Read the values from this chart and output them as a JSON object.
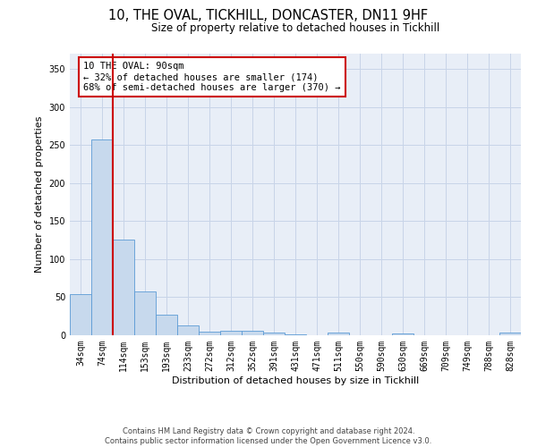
{
  "title": "10, THE OVAL, TICKHILL, DONCASTER, DN11 9HF",
  "subtitle": "Size of property relative to detached houses in Tickhill",
  "xlabel": "Distribution of detached houses by size in Tickhill",
  "ylabel": "Number of detached properties",
  "categories": [
    "34sqm",
    "74sqm",
    "114sqm",
    "153sqm",
    "193sqm",
    "233sqm",
    "272sqm",
    "312sqm",
    "352sqm",
    "391sqm",
    "431sqm",
    "471sqm",
    "511sqm",
    "550sqm",
    "590sqm",
    "630sqm",
    "669sqm",
    "709sqm",
    "749sqm",
    "788sqm",
    "828sqm"
  ],
  "values": [
    54,
    257,
    126,
    57,
    27,
    13,
    5,
    6,
    6,
    4,
    1,
    0,
    4,
    0,
    0,
    2,
    0,
    0,
    0,
    0,
    3
  ],
  "bar_color": "#c7d9ed",
  "bar_edge_color": "#5b9bd5",
  "vline_x": 1.5,
  "vline_color": "#cc0000",
  "annotation_text": "10 THE OVAL: 90sqm\n← 32% of detached houses are smaller (174)\n68% of semi-detached houses are larger (370) →",
  "annotation_box_color": "#ffffff",
  "annotation_box_edge": "#cc0000",
  "ylim": [
    0,
    370
  ],
  "yticks": [
    0,
    50,
    100,
    150,
    200,
    250,
    300,
    350
  ],
  "background_color": "#ffffff",
  "plot_bg_color": "#e8eef7",
  "grid_color": "#c8d4e8",
  "footer": "Contains HM Land Registry data © Crown copyright and database right 2024.\nContains public sector information licensed under the Open Government Licence v3.0.",
  "title_fontsize": 10.5,
  "subtitle_fontsize": 8.5,
  "axis_label_fontsize": 8,
  "tick_fontsize": 7,
  "annotation_fontsize": 7.5,
  "footer_fontsize": 6
}
